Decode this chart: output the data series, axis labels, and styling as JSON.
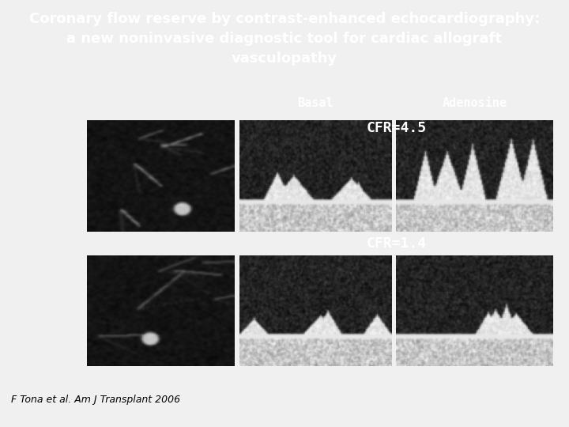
{
  "title_line1": "Coronary flow reserve by contrast-enhanced echocardiography:",
  "title_line2": "a new noninvasive diagnostic tool for cardiac allograft",
  "title_line3": "vasculopathy",
  "title_bg_color": "#7ab03a",
  "title_text_color": "#ffffff",
  "body_bg_color": "#f0f0f0",
  "panel_bg_color": "#000000",
  "label_basal": "Basal",
  "label_adenosine": "Adenosine",
  "label_cfr1": "CFR=4.5",
  "label_cfr2": "CFR=1.4",
  "label_text_color": "#ffffff",
  "footnote": "F Tona et al. Am J Transplant 2006",
  "footnote_color": "#000000",
  "footnote_fontsize": 9,
  "title_fontsize": 13.0,
  "cfr_fontsize": 13,
  "basal_adeno_fontsize": 11
}
